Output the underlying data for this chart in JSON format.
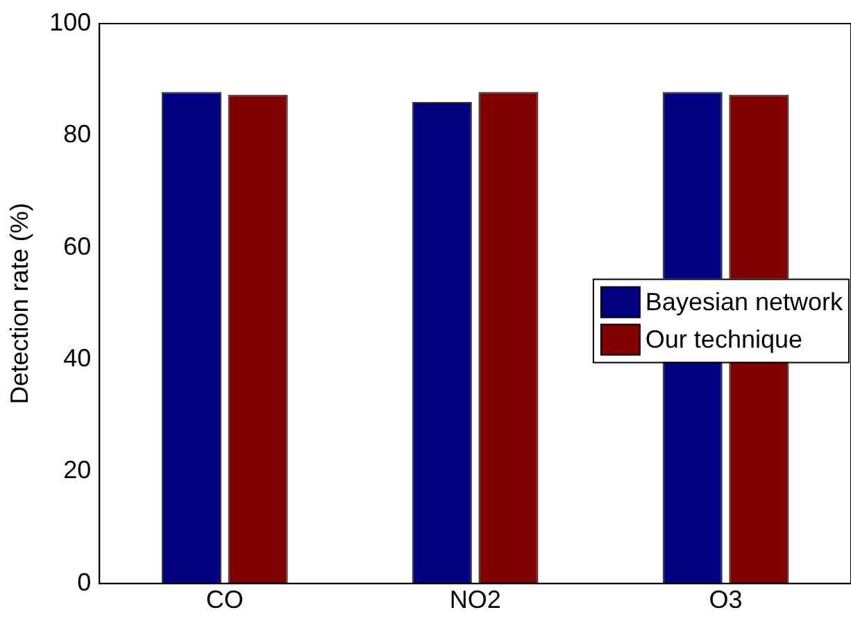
{
  "chart_data": {
    "type": "bar",
    "ylabel": "Detection rate (%)",
    "categories": [
      "CO",
      "NO2",
      "O3"
    ],
    "series": [
      {
        "name": "Bayesian network",
        "color": "#000080",
        "values": [
          87.8,
          86,
          87.8
        ]
      },
      {
        "name": "Our technique",
        "color": "#800000",
        "values": [
          87.3,
          87.8,
          87.3
        ]
      }
    ],
    "ylim": [
      0,
      100
    ],
    "yticks": [
      0,
      20,
      40,
      60,
      80,
      100
    ],
    "grid": false,
    "legend": "right"
  }
}
